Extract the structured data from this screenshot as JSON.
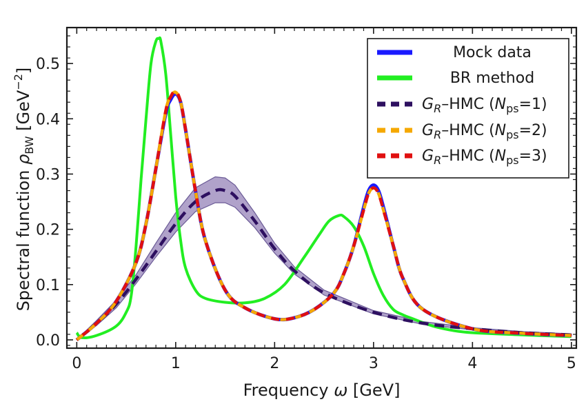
{
  "chart_data": {
    "type": "line",
    "xlabel": "Frequency ω [GeV]",
    "ylabel": "Spectral function ρ_BW [GeV^−2]",
    "ylabel_parts": {
      "main": "Spectral function ",
      "rho": "ρ",
      "sub": "BW",
      "unit_open": " [GeV",
      "sup": "−2",
      "unit_close": "]"
    },
    "xlabel_parts": {
      "main": "Frequency ",
      "omega": "ω",
      "unit": " [GeV]"
    },
    "xlim": [
      -0.1,
      5.05
    ],
    "ylim": [
      -0.015,
      0.565
    ],
    "x_ticks": [
      0,
      1,
      2,
      3,
      4,
      5
    ],
    "x_tick_labels": [
      "0",
      "1",
      "2",
      "3",
      "4",
      "5"
    ],
    "y_ticks": [
      0.0,
      0.1,
      0.2,
      0.3,
      0.4,
      0.5
    ],
    "y_tick_labels": [
      "0.0",
      "0.1",
      "0.2",
      "0.3",
      "0.4",
      "0.5"
    ],
    "grid": false,
    "legend_position": "top-right",
    "legend": [
      {
        "label": "Mock data",
        "style": "solid",
        "color": "#1a1aff"
      },
      {
        "label": "BR method",
        "style": "solid",
        "color": "#22ee22"
      },
      {
        "label_prefix": "G",
        "label_sub": "R",
        "label_mid": "–HMC (",
        "label_n": "N",
        "label_nsub": "ps",
        "label_end": "=1)",
        "style": "dashed",
        "color": "#2e1060"
      },
      {
        "label_prefix": "G",
        "label_sub": "R",
        "label_mid": "–HMC (",
        "label_n": "N",
        "label_nsub": "ps",
        "label_end": "=2)",
        "style": "dashed",
        "color": "#f5a800"
      },
      {
        "label_prefix": "G",
        "label_sub": "R",
        "label_mid": "–HMC (",
        "label_n": "N",
        "label_nsub": "ps",
        "label_end": "=3)",
        "style": "dashed",
        "color": "#e01010"
      }
    ],
    "series": [
      {
        "name": "Mock data",
        "color": "#1a1aff",
        "x": [
          0,
          0.2,
          0.4,
          0.6,
          0.7,
          0.8,
          0.9,
          0.95,
          1.0,
          1.05,
          1.1,
          1.2,
          1.3,
          1.5,
          1.7,
          2.0,
          2.2,
          2.4,
          2.6,
          2.7,
          2.8,
          2.9,
          2.95,
          3.0,
          3.05,
          3.1,
          3.2,
          3.3,
          3.5,
          4.0,
          4.5,
          5.0
        ],
        "y": [
          0.0,
          0.03,
          0.07,
          0.14,
          0.21,
          0.31,
          0.41,
          0.435,
          0.445,
          0.43,
          0.38,
          0.27,
          0.18,
          0.09,
          0.058,
          0.038,
          0.04,
          0.055,
          0.085,
          0.12,
          0.17,
          0.24,
          0.27,
          0.28,
          0.27,
          0.24,
          0.17,
          0.11,
          0.055,
          0.02,
          0.012,
          0.008
        ]
      },
      {
        "name": "BR method",
        "color": "#22ee22",
        "x": [
          0,
          0.05,
          0.2,
          0.4,
          0.5,
          0.55,
          0.6,
          0.65,
          0.7,
          0.75,
          0.8,
          0.83,
          0.85,
          0.9,
          0.95,
          1.0,
          1.05,
          1.1,
          1.2,
          1.3,
          1.5,
          1.7,
          1.9,
          2.1,
          2.3,
          2.45,
          2.55,
          2.65,
          2.7,
          2.8,
          2.9,
          3.0,
          3.1,
          3.2,
          3.3,
          3.4,
          3.6,
          3.8,
          4.0,
          4.5,
          5.0
        ],
        "y": [
          0.013,
          0.004,
          0.008,
          0.025,
          0.05,
          0.08,
          0.17,
          0.29,
          0.4,
          0.5,
          0.54,
          0.545,
          0.54,
          0.48,
          0.37,
          0.26,
          0.18,
          0.13,
          0.09,
          0.075,
          0.068,
          0.067,
          0.075,
          0.1,
          0.15,
          0.19,
          0.215,
          0.225,
          0.223,
          0.205,
          0.17,
          0.12,
          0.08,
          0.055,
          0.045,
          0.038,
          0.025,
          0.017,
          0.013,
          0.009,
          0.006
        ]
      },
      {
        "name": "G_R–HMC (N_ps=1)",
        "color": "#2e1060",
        "x": [
          0,
          0.2,
          0.4,
          0.6,
          0.8,
          1.0,
          1.2,
          1.4,
          1.5,
          1.6,
          1.8,
          2.0,
          2.2,
          2.5,
          3.0,
          3.5,
          4.0,
          4.5,
          5.0
        ],
        "y": [
          0.0,
          0.03,
          0.065,
          0.11,
          0.16,
          0.21,
          0.25,
          0.27,
          0.27,
          0.26,
          0.215,
          0.165,
          0.125,
          0.085,
          0.05,
          0.03,
          0.02,
          0.013,
          0.009
        ],
        "band_upper": [
          0.0,
          0.035,
          0.072,
          0.118,
          0.175,
          0.23,
          0.275,
          0.295,
          0.293,
          0.28,
          0.23,
          0.175,
          0.132,
          0.09,
          0.053,
          0.033,
          0.022,
          0.015,
          0.011
        ],
        "band_lower": [
          0.0,
          0.026,
          0.058,
          0.102,
          0.15,
          0.195,
          0.232,
          0.248,
          0.248,
          0.24,
          0.203,
          0.157,
          0.119,
          0.081,
          0.047,
          0.028,
          0.018,
          0.012,
          0.008
        ]
      },
      {
        "name": "G_R–HMC (N_ps=2)",
        "color": "#f5a800",
        "x": [
          0,
          0.2,
          0.4,
          0.6,
          0.7,
          0.8,
          0.9,
          0.95,
          1.0,
          1.05,
          1.1,
          1.2,
          1.3,
          1.5,
          1.7,
          2.0,
          2.2,
          2.4,
          2.6,
          2.7,
          2.8,
          2.9,
          2.95,
          3.0,
          3.05,
          3.1,
          3.2,
          3.3,
          3.5,
          4.0,
          4.5,
          5.0
        ],
        "y": [
          0.0,
          0.03,
          0.07,
          0.14,
          0.21,
          0.31,
          0.415,
          0.44,
          0.448,
          0.43,
          0.38,
          0.27,
          0.18,
          0.09,
          0.058,
          0.038,
          0.04,
          0.055,
          0.085,
          0.12,
          0.17,
          0.235,
          0.265,
          0.275,
          0.265,
          0.235,
          0.17,
          0.11,
          0.055,
          0.02,
          0.012,
          0.008
        ]
      },
      {
        "name": "G_R–HMC (N_ps=3)",
        "color": "#e01010",
        "x": [
          0,
          0.2,
          0.4,
          0.6,
          0.7,
          0.8,
          0.9,
          0.95,
          1.0,
          1.05,
          1.1,
          1.2,
          1.3,
          1.5,
          1.7,
          2.0,
          2.2,
          2.4,
          2.6,
          2.7,
          2.8,
          2.9,
          2.95,
          3.0,
          3.05,
          3.1,
          3.2,
          3.3,
          3.5,
          4.0,
          4.5,
          5.0
        ],
        "y": [
          0.0,
          0.03,
          0.07,
          0.14,
          0.21,
          0.31,
          0.415,
          0.44,
          0.45,
          0.43,
          0.38,
          0.27,
          0.18,
          0.09,
          0.058,
          0.038,
          0.04,
          0.055,
          0.085,
          0.12,
          0.17,
          0.235,
          0.265,
          0.275,
          0.265,
          0.235,
          0.17,
          0.11,
          0.055,
          0.02,
          0.012,
          0.008
        ]
      }
    ]
  }
}
